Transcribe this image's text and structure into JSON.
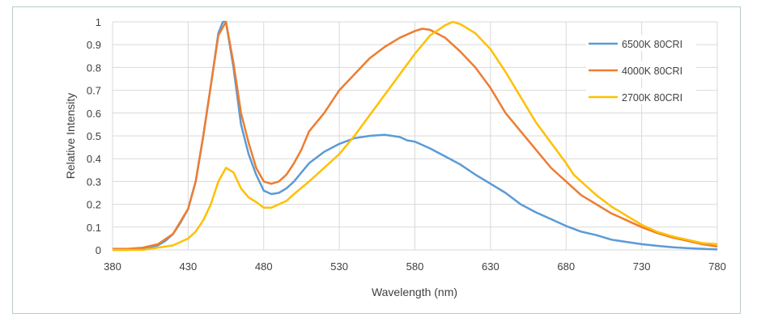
{
  "chart_data": {
    "type": "line",
    "title": "",
    "xlabel": "Wavelength (nm)",
    "ylabel": "Relative Intensity",
    "xlim": [
      380,
      780
    ],
    "ylim": [
      0,
      1
    ],
    "xticks": [
      380,
      430,
      480,
      530,
      580,
      630,
      680,
      730,
      780
    ],
    "yticks": [
      0,
      0.1,
      0.2,
      0.3,
      0.4,
      0.5,
      0.6,
      0.7,
      0.8,
      0.9,
      1
    ],
    "ytick_labels": [
      "0",
      "0.1",
      "0.2",
      "0.3",
      "0.4",
      "0.5",
      "0.6",
      "0.7",
      "0.8",
      "0.9",
      "1"
    ],
    "grid": true,
    "legend_position": "right",
    "series": [
      {
        "name": "6500K 80CRI",
        "color": "#5b9bd5",
        "x": [
          380,
          390,
          400,
          410,
          415,
          420,
          425,
          430,
          435,
          440,
          445,
          450,
          453,
          455,
          460,
          465,
          470,
          475,
          480,
          485,
          490,
          495,
          500,
          510,
          520,
          530,
          540,
          550,
          560,
          570,
          575,
          580,
          590,
          600,
          610,
          620,
          630,
          640,
          650,
          660,
          670,
          680,
          690,
          700,
          710,
          720,
          730,
          740,
          750,
          760,
          770,
          780
        ],
        "y": [
          0,
          0,
          0.005,
          0.02,
          0.04,
          0.07,
          0.12,
          0.18,
          0.3,
          0.5,
          0.72,
          0.95,
          1.0,
          1.0,
          0.8,
          0.55,
          0.42,
          0.33,
          0.26,
          0.245,
          0.25,
          0.27,
          0.3,
          0.38,
          0.43,
          0.465,
          0.49,
          0.5,
          0.505,
          0.495,
          0.48,
          0.475,
          0.445,
          0.41,
          0.375,
          0.33,
          0.29,
          0.25,
          0.2,
          0.165,
          0.135,
          0.105,
          0.08,
          0.065,
          0.045,
          0.035,
          0.025,
          0.018,
          0.012,
          0.008,
          0.005,
          0.002
        ]
      },
      {
        "name": "4000K 80CRI",
        "color": "#ed7d31",
        "x": [
          380,
          390,
          400,
          410,
          420,
          430,
          435,
          440,
          445,
          450,
          455,
          460,
          465,
          470,
          475,
          480,
          485,
          490,
          495,
          500,
          505,
          510,
          520,
          530,
          540,
          550,
          560,
          570,
          580,
          585,
          590,
          600,
          610,
          620,
          630,
          640,
          650,
          660,
          670,
          680,
          690,
          700,
          710,
          720,
          730,
          740,
          750,
          760,
          770,
          780
        ],
        "y": [
          0.005,
          0.005,
          0.01,
          0.025,
          0.07,
          0.18,
          0.3,
          0.5,
          0.72,
          0.94,
          1.0,
          0.82,
          0.6,
          0.47,
          0.36,
          0.3,
          0.29,
          0.3,
          0.33,
          0.38,
          0.44,
          0.52,
          0.6,
          0.7,
          0.77,
          0.84,
          0.89,
          0.93,
          0.96,
          0.97,
          0.965,
          0.93,
          0.87,
          0.8,
          0.71,
          0.6,
          0.52,
          0.44,
          0.36,
          0.3,
          0.24,
          0.2,
          0.16,
          0.13,
          0.1,
          0.075,
          0.055,
          0.04,
          0.025,
          0.015
        ]
      },
      {
        "name": "2700K 80CRI",
        "color": "#ffc000",
        "x": [
          380,
          400,
          410,
          420,
          430,
          435,
          440,
          445,
          450,
          455,
          460,
          465,
          470,
          475,
          480,
          485,
          490,
          495,
          500,
          510,
          520,
          530,
          540,
          550,
          560,
          570,
          580,
          590,
          600,
          605,
          610,
          620,
          630,
          640,
          650,
          660,
          670,
          680,
          685,
          690,
          700,
          710,
          720,
          730,
          740,
          750,
          760,
          770,
          780
        ],
        "y": [
          0,
          0,
          0.01,
          0.02,
          0.05,
          0.08,
          0.13,
          0.2,
          0.3,
          0.36,
          0.34,
          0.27,
          0.23,
          0.21,
          0.185,
          0.185,
          0.2,
          0.215,
          0.245,
          0.3,
          0.36,
          0.42,
          0.5,
          0.59,
          0.68,
          0.77,
          0.86,
          0.94,
          0.985,
          1.0,
          0.99,
          0.95,
          0.88,
          0.78,
          0.67,
          0.56,
          0.47,
          0.38,
          0.33,
          0.3,
          0.24,
          0.19,
          0.15,
          0.11,
          0.08,
          0.06,
          0.045,
          0.03,
          0.025
        ]
      }
    ]
  }
}
